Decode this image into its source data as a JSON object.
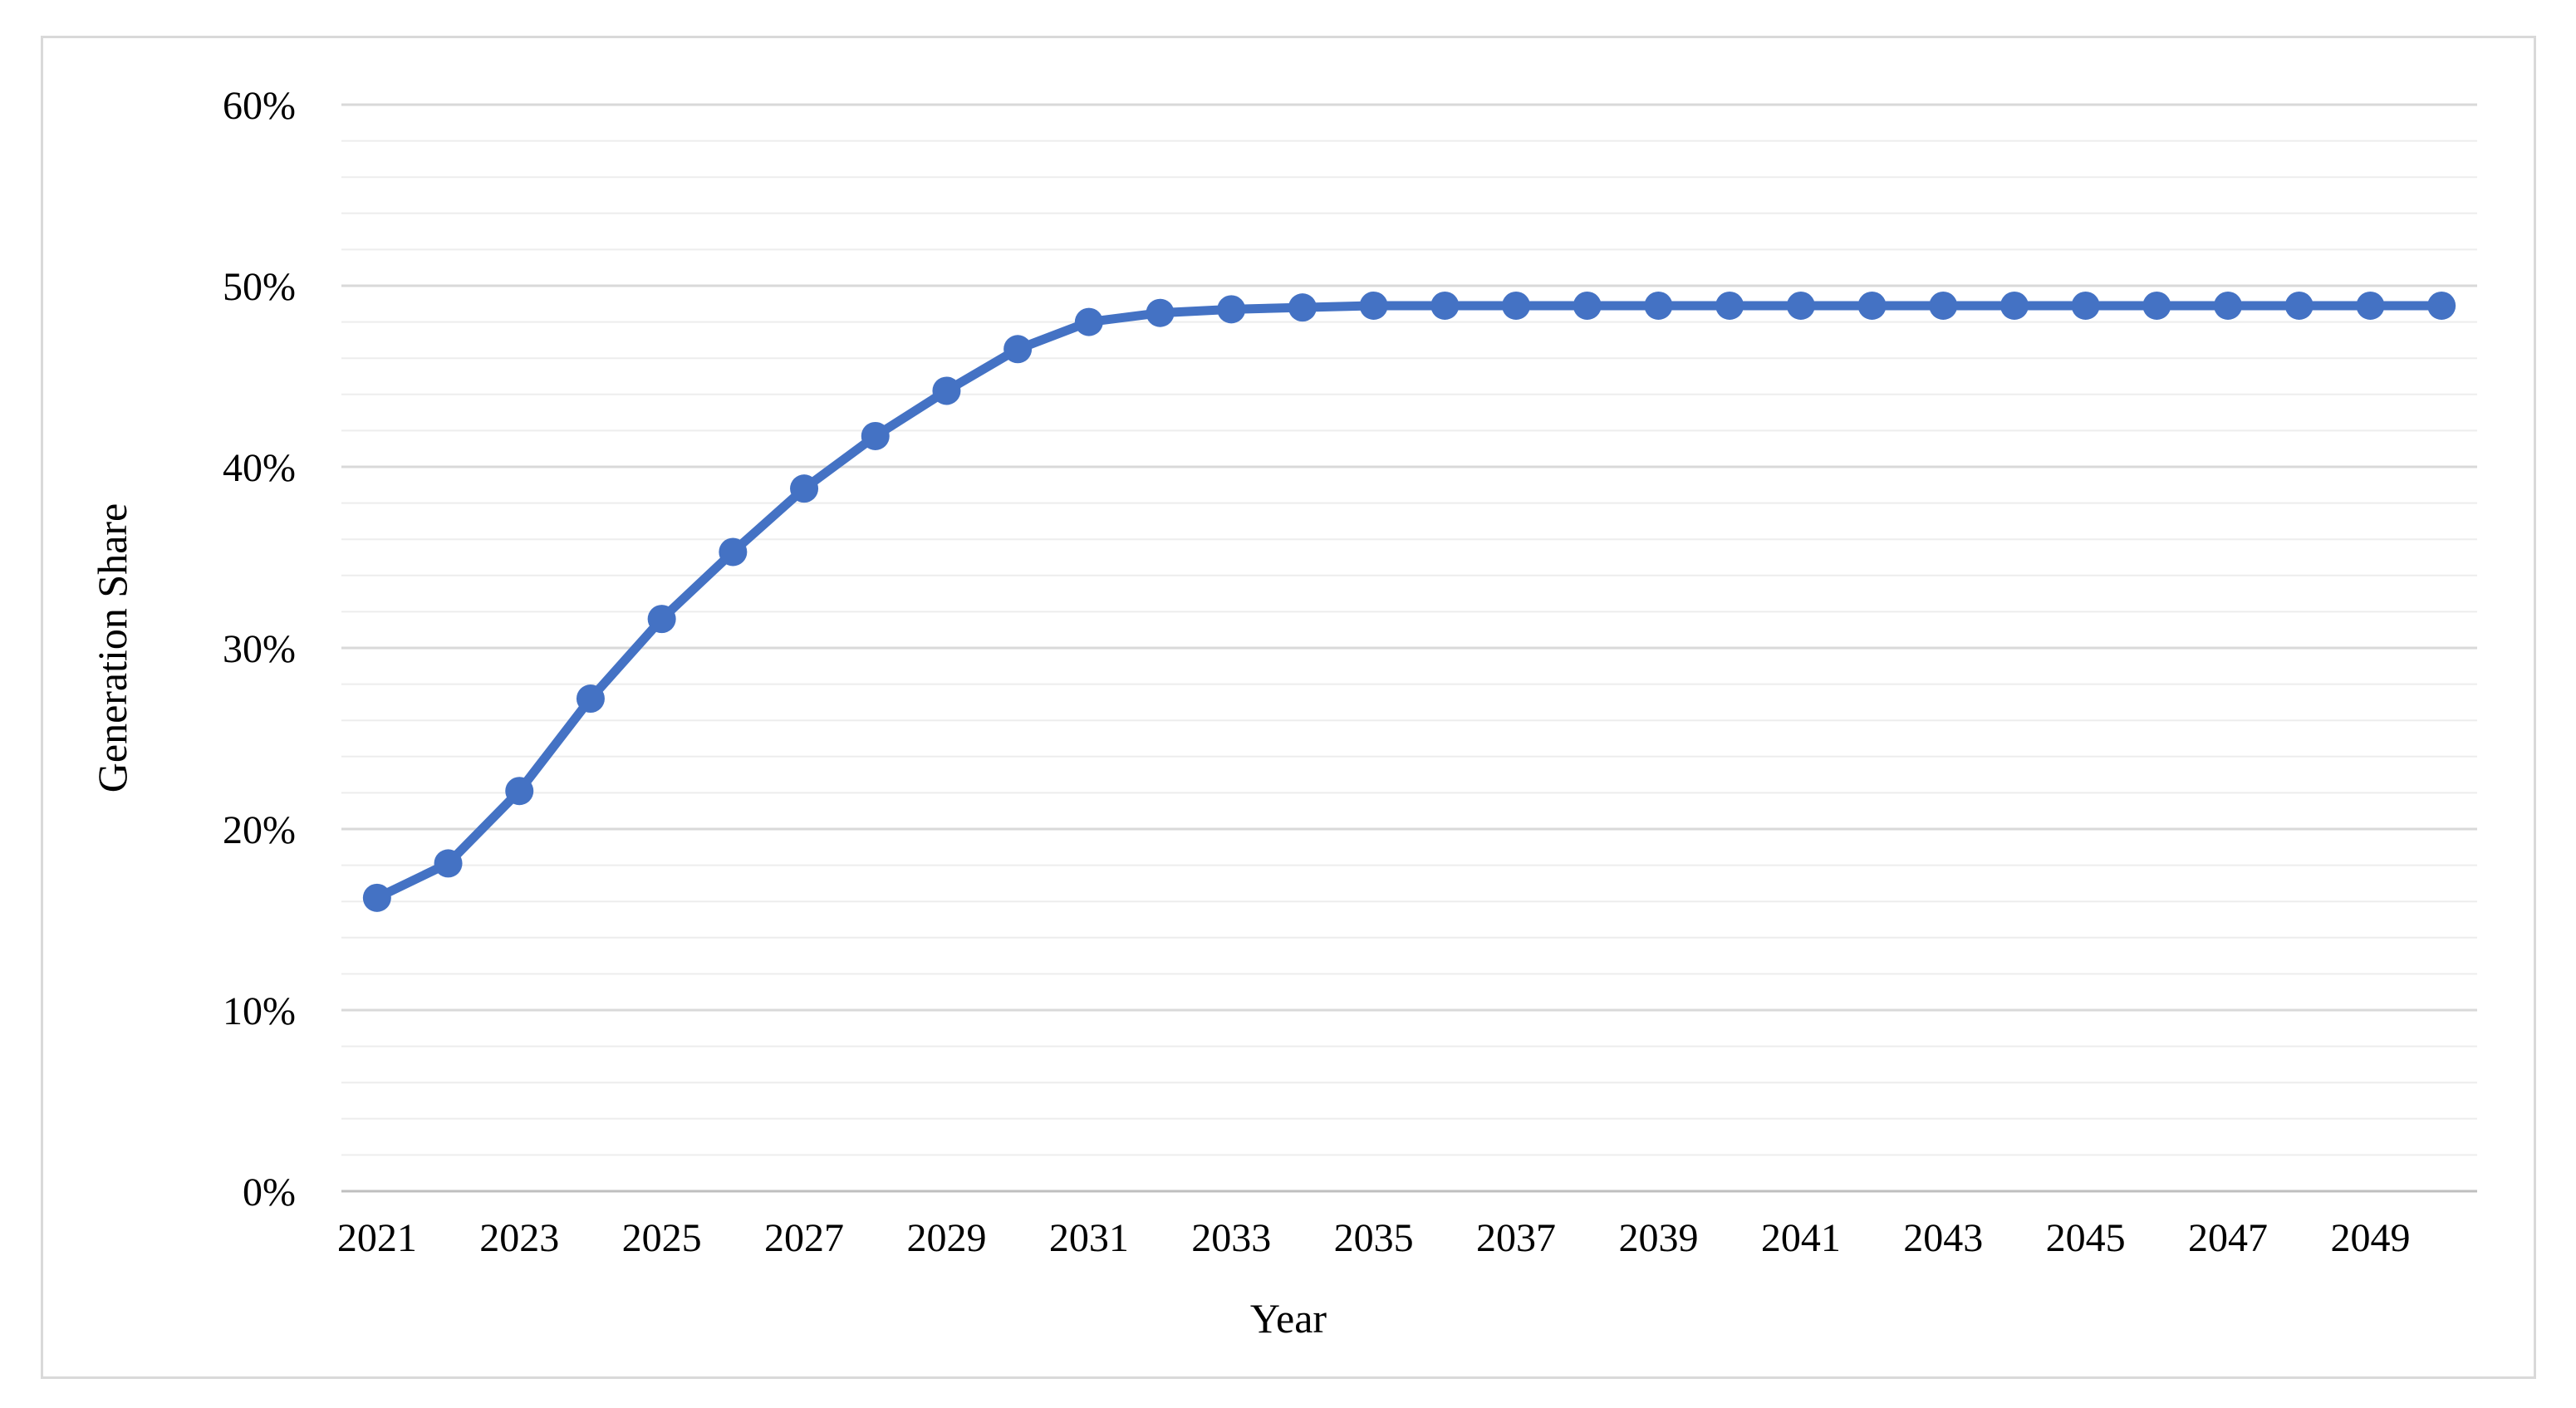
{
  "chart_data": {
    "type": "line",
    "title": "",
    "xlabel": "Year",
    "ylabel": "Generation Share",
    "x": [
      2021,
      2022,
      2023,
      2024,
      2025,
      2026,
      2027,
      2028,
      2029,
      2030,
      2031,
      2032,
      2033,
      2034,
      2035,
      2036,
      2037,
      2038,
      2039,
      2040,
      2041,
      2042,
      2043,
      2044,
      2045,
      2046,
      2047,
      2048,
      2049,
      2050
    ],
    "series": [
      {
        "name": "Generation Share",
        "values": [
          16.2,
          18.1,
          22.1,
          27.2,
          31.6,
          35.3,
          38.8,
          41.7,
          44.2,
          46.5,
          48.0,
          48.5,
          48.7,
          48.8,
          48.9,
          48.9,
          48.9,
          48.9,
          48.9,
          48.9,
          48.9,
          48.9,
          48.9,
          48.9,
          48.9,
          48.9,
          48.9,
          48.9,
          48.9,
          48.9
        ]
      }
    ],
    "ylim": [
      0,
      60
    ],
    "y_major_step": 10,
    "y_minor_step": 2,
    "y_tick_labels": [
      "0%",
      "10%",
      "20%",
      "30%",
      "40%",
      "50%",
      "60%"
    ],
    "x_tick_labels": [
      "2021",
      "2023",
      "2025",
      "2027",
      "2029",
      "2031",
      "2033",
      "2035",
      "2037",
      "2039",
      "2041",
      "2043",
      "2045",
      "2047",
      "2049"
    ],
    "grid": "horizontal-only",
    "legend": "none"
  },
  "colors": {
    "line": "#4472C4",
    "marker": "#4472C4",
    "gridline_minor": "#ededed",
    "gridline_major": "#d9d9d9",
    "axis_line": "#bfbfbf",
    "card_border": "#d9d9d9",
    "text": "#000000",
    "background": "#ffffff"
  }
}
